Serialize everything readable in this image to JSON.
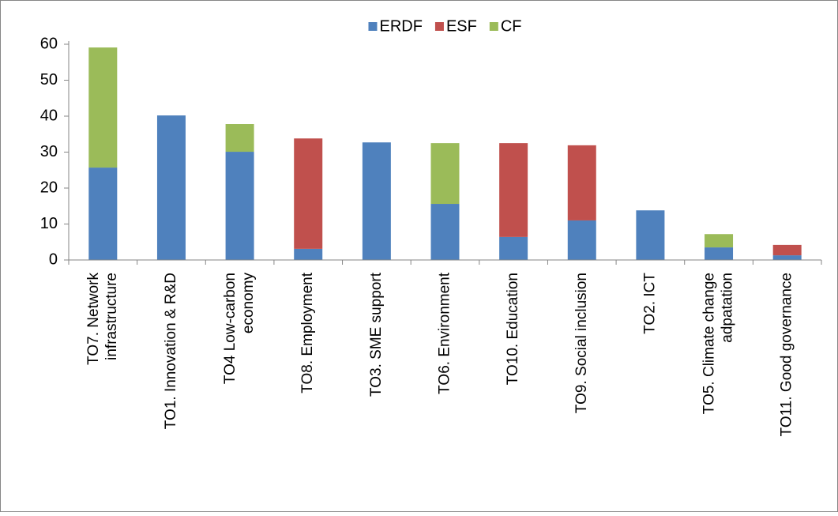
{
  "chart_data": {
    "type": "stacked-bar",
    "categories": [
      [
        "TO7. Network",
        "infrastructure"
      ],
      [
        "TO1. Innovation & R&D"
      ],
      [
        "TO4 Low-carbon",
        "economy"
      ],
      [
        "TO8. Employment"
      ],
      [
        "TO3. SME support"
      ],
      [
        "TO6. Environment"
      ],
      [
        "TO10. Education"
      ],
      [
        "TO9. Social inclusion"
      ],
      [
        "TO2. ICT"
      ],
      [
        "TO5. Climate change",
        "adpatation"
      ],
      [
        "TO11. Good governance"
      ]
    ],
    "series": [
      {
        "name": "ERDF",
        "color": "#4f81bd",
        "values": [
          25.7,
          40.2,
          30.1,
          3.1,
          32.7,
          15.6,
          6.4,
          11.0,
          13.8,
          3.5,
          1.3
        ]
      },
      {
        "name": "ESF",
        "color": "#c0504d",
        "values": [
          0,
          0,
          0,
          30.7,
          0,
          0,
          26.1,
          20.9,
          0,
          0,
          2.9
        ]
      },
      {
        "name": "CF",
        "color": "#9bbb59",
        "values": [
          33.4,
          0,
          7.7,
          0,
          0,
          16.9,
          0,
          0,
          0,
          3.7,
          0
        ]
      }
    ],
    "ylim": [
      0,
      60
    ],
    "yticks": [
      0,
      10,
      20,
      30,
      40,
      50,
      60
    ],
    "grid": false,
    "legend": "top"
  }
}
